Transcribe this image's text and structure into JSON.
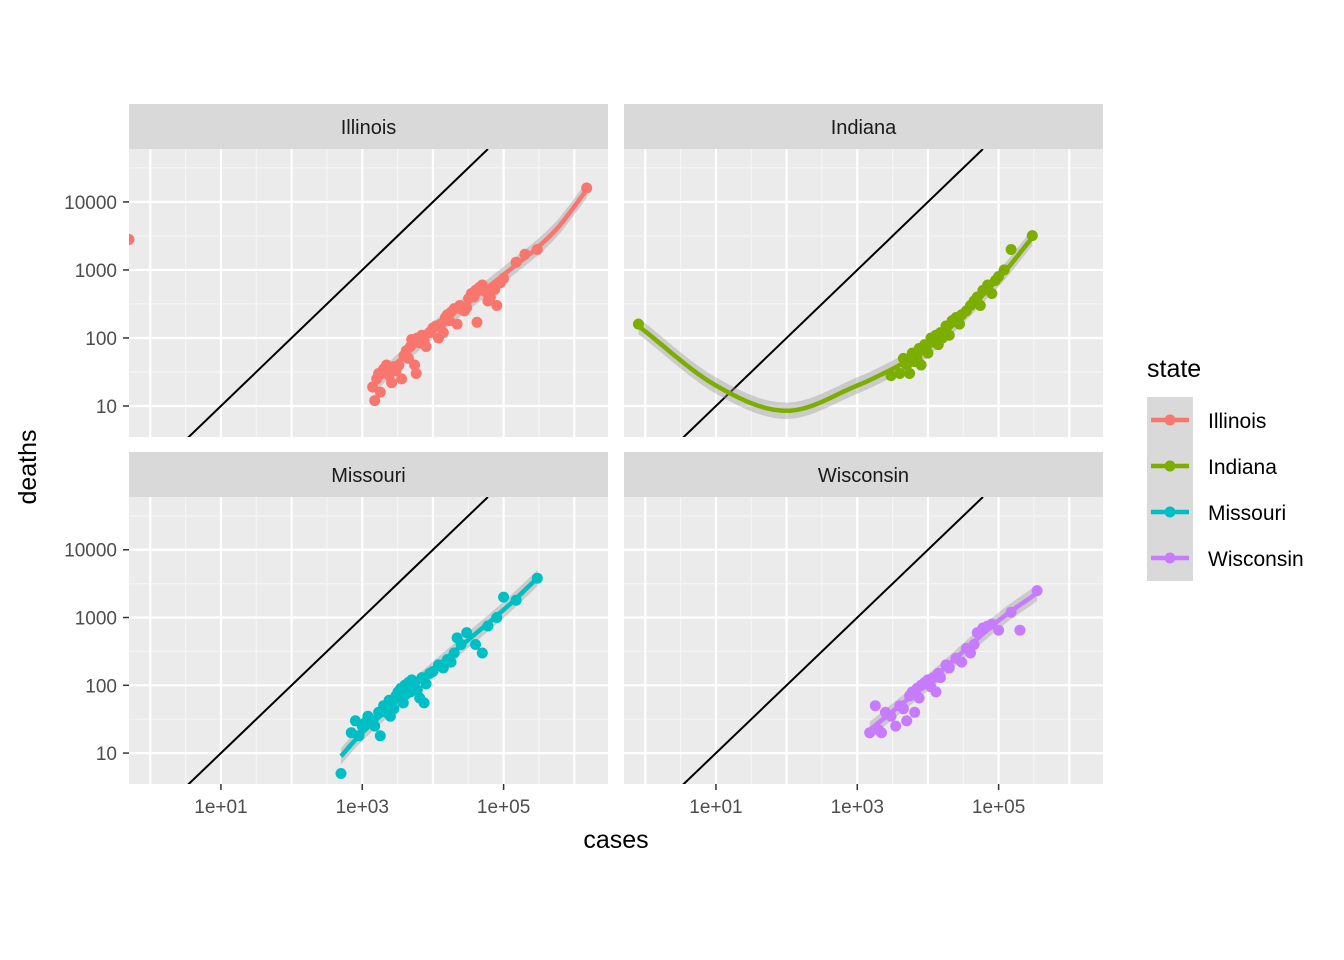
{
  "chart_data": {
    "type": "scatter",
    "xlabel": "cases",
    "ylabel": "deaths",
    "x_scale": "log10",
    "y_scale": "log10",
    "xlim": [
      0.5,
      3000000
    ],
    "ylim": [
      3.5,
      60000
    ],
    "x_ticks": [
      10,
      1000,
      100000
    ],
    "x_tick_labels": [
      "1e+01",
      "1e+03",
      "1e+05"
    ],
    "y_ticks": [
      10,
      100,
      1000,
      10000
    ],
    "y_tick_labels": [
      "10",
      "100",
      "1000",
      "10000"
    ],
    "grid": true,
    "reference_line": "y = x",
    "trend": "smoothed fit with confidence band",
    "legend": {
      "title": "state",
      "position": "right",
      "entries": [
        "Illinois",
        "Indiana",
        "Missouri",
        "Wisconsin"
      ]
    },
    "colors": {
      "Illinois": "#F8766D",
      "Indiana": "#7CAE00",
      "Missouri": "#00BFC4",
      "Wisconsin": "#C77CFF"
    },
    "facets": [
      {
        "name": "Illinois",
        "points": [
          [
            0.5,
            2800
          ],
          [
            1400,
            19
          ],
          [
            1500,
            12
          ],
          [
            1600,
            25
          ],
          [
            1700,
            30
          ],
          [
            1800,
            16
          ],
          [
            2000,
            35
          ],
          [
            2200,
            40
          ],
          [
            2400,
            28
          ],
          [
            2600,
            22
          ],
          [
            2800,
            38
          ],
          [
            3000,
            33
          ],
          [
            3300,
            40
          ],
          [
            3600,
            25
          ],
          [
            3900,
            55
          ],
          [
            4200,
            65
          ],
          [
            4500,
            50
          ],
          [
            4800,
            75
          ],
          [
            5000,
            95
          ],
          [
            5500,
            40
          ],
          [
            5800,
            30
          ],
          [
            6000,
            100
          ],
          [
            6500,
            85
          ],
          [
            7000,
            110
          ],
          [
            7500,
            90
          ],
          [
            8000,
            75
          ],
          [
            9000,
            120
          ],
          [
            10000,
            140
          ],
          [
            11000,
            150
          ],
          [
            12000,
            100
          ],
          [
            13000,
            160
          ],
          [
            14000,
            120
          ],
          [
            15000,
            200
          ],
          [
            16000,
            220
          ],
          [
            17000,
            180
          ],
          [
            18000,
            240
          ],
          [
            20000,
            270
          ],
          [
            22000,
            160
          ],
          [
            24000,
            300
          ],
          [
            26000,
            260
          ],
          [
            28000,
            250
          ],
          [
            30000,
            280
          ],
          [
            32000,
            380
          ],
          [
            35000,
            450
          ],
          [
            38000,
            400
          ],
          [
            40000,
            500
          ],
          [
            42000,
            170
          ],
          [
            45000,
            550
          ],
          [
            50000,
            600
          ],
          [
            55000,
            480
          ],
          [
            60000,
            350
          ],
          [
            65000,
            400
          ],
          [
            70000,
            550
          ],
          [
            75000,
            520
          ],
          [
            80000,
            300
          ],
          [
            90000,
            650
          ],
          [
            100000,
            750
          ],
          [
            150000,
            1300
          ],
          [
            200000,
            1700
          ],
          [
            300000,
            2000
          ],
          [
            1500000,
            16000
          ]
        ],
        "trend": [
          [
            1400,
            20
          ],
          [
            10000,
            130
          ],
          [
            100000,
            850
          ],
          [
            500000,
            3500
          ],
          [
            1500000,
            15000
          ]
        ]
      },
      {
        "name": "Indiana",
        "points": [
          [
            0.8,
            160
          ],
          [
            3000,
            28
          ],
          [
            4000,
            30
          ],
          [
            4500,
            50
          ],
          [
            5000,
            40
          ],
          [
            5500,
            30
          ],
          [
            6000,
            60
          ],
          [
            6500,
            45
          ],
          [
            7000,
            50
          ],
          [
            7500,
            70
          ],
          [
            8000,
            40
          ],
          [
            9000,
            80
          ],
          [
            10000,
            60
          ],
          [
            11000,
            100
          ],
          [
            12000,
            90
          ],
          [
            13000,
            110
          ],
          [
            14000,
            80
          ],
          [
            15000,
            120
          ],
          [
            16000,
            100
          ],
          [
            18000,
            150
          ],
          [
            20000,
            110
          ],
          [
            22000,
            180
          ],
          [
            25000,
            200
          ],
          [
            28000,
            160
          ],
          [
            30000,
            220
          ],
          [
            35000,
            250
          ],
          [
            40000,
            300
          ],
          [
            45000,
            350
          ],
          [
            50000,
            400
          ],
          [
            55000,
            300
          ],
          [
            60000,
            500
          ],
          [
            70000,
            600
          ],
          [
            80000,
            450
          ],
          [
            90000,
            700
          ],
          [
            100000,
            800
          ],
          [
            120000,
            1000
          ],
          [
            150000,
            2000
          ],
          [
            300000,
            3200
          ]
        ],
        "trend": [
          [
            0.8,
            150
          ],
          [
            10,
            20
          ],
          [
            100,
            8.5
          ],
          [
            1000,
            20
          ],
          [
            5000,
            45
          ],
          [
            10000,
            70
          ],
          [
            100000,
            750
          ],
          [
            300000,
            3000
          ]
        ]
      },
      {
        "name": "Missouri",
        "points": [
          [
            500,
            5
          ],
          [
            700,
            20
          ],
          [
            800,
            30
          ],
          [
            900,
            18
          ],
          [
            1000,
            25
          ],
          [
            1100,
            28
          ],
          [
            1200,
            35
          ],
          [
            1400,
            30
          ],
          [
            1500,
            25
          ],
          [
            1700,
            40
          ],
          [
            1800,
            18
          ],
          [
            2000,
            50
          ],
          [
            2200,
            40
          ],
          [
            2400,
            60
          ],
          [
            2500,
            35
          ],
          [
            2800,
            45
          ],
          [
            3000,
            70
          ],
          [
            3200,
            80
          ],
          [
            3500,
            90
          ],
          [
            3800,
            55
          ],
          [
            4000,
            100
          ],
          [
            4200,
            75
          ],
          [
            4500,
            110
          ],
          [
            4800,
            80
          ],
          [
            5000,
            120
          ],
          [
            5500,
            95
          ],
          [
            6000,
            85
          ],
          [
            6500,
            65
          ],
          [
            7000,
            130
          ],
          [
            7500,
            55
          ],
          [
            8000,
            105
          ],
          [
            9000,
            150
          ],
          [
            10000,
            160
          ],
          [
            12000,
            200
          ],
          [
            14000,
            180
          ],
          [
            16000,
            240
          ],
          [
            18000,
            220
          ],
          [
            20000,
            300
          ],
          [
            22000,
            500
          ],
          [
            25000,
            400
          ],
          [
            30000,
            600
          ],
          [
            40000,
            400
          ],
          [
            50000,
            300
          ],
          [
            60000,
            750
          ],
          [
            80000,
            1000
          ],
          [
            100000,
            2000
          ],
          [
            150000,
            1800
          ],
          [
            300000,
            3800
          ]
        ],
        "trend": [
          [
            500,
            9
          ],
          [
            1000,
            20
          ],
          [
            10000,
            170
          ],
          [
            100000,
            1300
          ],
          [
            300000,
            3800
          ]
        ]
      },
      {
        "name": "Wisconsin",
        "points": [
          [
            1500,
            20
          ],
          [
            1800,
            50
          ],
          [
            2000,
            22
          ],
          [
            2200,
            20
          ],
          [
            2500,
            40
          ],
          [
            3000,
            35
          ],
          [
            3500,
            25
          ],
          [
            4000,
            50
          ],
          [
            4500,
            45
          ],
          [
            5000,
            30
          ],
          [
            5500,
            70
          ],
          [
            6000,
            80
          ],
          [
            6500,
            40
          ],
          [
            7000,
            90
          ],
          [
            7500,
            65
          ],
          [
            8000,
            100
          ],
          [
            9000,
            110
          ],
          [
            10000,
            120
          ],
          [
            11000,
            95
          ],
          [
            12000,
            130
          ],
          [
            13000,
            80
          ],
          [
            14000,
            150
          ],
          [
            15000,
            130
          ],
          [
            18000,
            200
          ],
          [
            20000,
            180
          ],
          [
            25000,
            250
          ],
          [
            30000,
            220
          ],
          [
            35000,
            350
          ],
          [
            40000,
            300
          ],
          [
            45000,
            400
          ],
          [
            50000,
            600
          ],
          [
            60000,
            700
          ],
          [
            70000,
            750
          ],
          [
            80000,
            800
          ],
          [
            100000,
            650
          ],
          [
            150000,
            1200
          ],
          [
            200000,
            650
          ],
          [
            350000,
            2500
          ]
        ],
        "trend": [
          [
            1500,
            22
          ],
          [
            10000,
            110
          ],
          [
            100000,
            900
          ],
          [
            350000,
            2300
          ]
        ]
      }
    ]
  }
}
